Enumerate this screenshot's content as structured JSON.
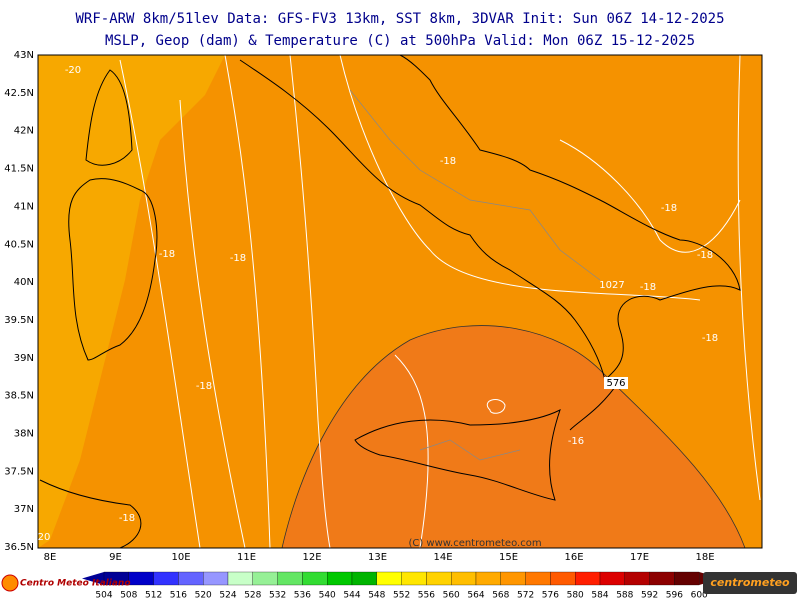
{
  "header": {
    "title_line1": "WRF-ARW 8km/51lev  Data: GFS-FV3 13km, SST 8km, 3DVAR  Init: Sun 06Z 14-12-2025",
    "title_line2": "MSLP, Geop (dam) & Temperature (C) at 500hPa  Valid: Mon 06Z 15-12-2025"
  },
  "map": {
    "lat_labels": [
      "43N",
      "42.5N",
      "42N",
      "41.5N",
      "41N",
      "40.5N",
      "40N",
      "39.5N",
      "39N",
      "38.5N",
      "38N",
      "37.5N",
      "37N",
      "36.5N"
    ],
    "lon_labels": [
      "8E",
      "9E",
      "10E",
      "11E",
      "12E",
      "13E",
      "14E",
      "15E",
      "16E",
      "17E",
      "18E"
    ],
    "contour_labels": [
      "-20",
      "-18",
      "-18",
      "-18",
      "-18",
      "-18",
      "1027",
      "-18",
      "-18",
      "-18",
      "576",
      "-16",
      "-18",
      "20"
    ],
    "copyright": "(C) www.centrometeo.com"
  },
  "colorbar": {
    "labels": [
      504,
      508,
      512,
      516,
      520,
      524,
      528,
      532,
      536,
      540,
      544,
      548,
      552,
      556,
      560,
      564,
      568,
      572,
      576,
      580,
      584,
      588,
      592,
      596,
      600
    ],
    "colors": [
      "#000096",
      "#0000c8",
      "#3232ff",
      "#6464ff",
      "#9696ff",
      "#c8ffc8",
      "#96f096",
      "#64e664",
      "#32dc32",
      "#00c800",
      "#00b400",
      "#ffff00",
      "#ffe600",
      "#ffd200",
      "#ffbe00",
      "#ffaa00",
      "#ff9600",
      "#ff7800",
      "#ff5a00",
      "#ff1e00",
      "#dc0000",
      "#b40000",
      "#8c0000",
      "#640000"
    ]
  },
  "logos": {
    "left": "Centro Meteo Italiano",
    "right": "centrometeo"
  }
}
